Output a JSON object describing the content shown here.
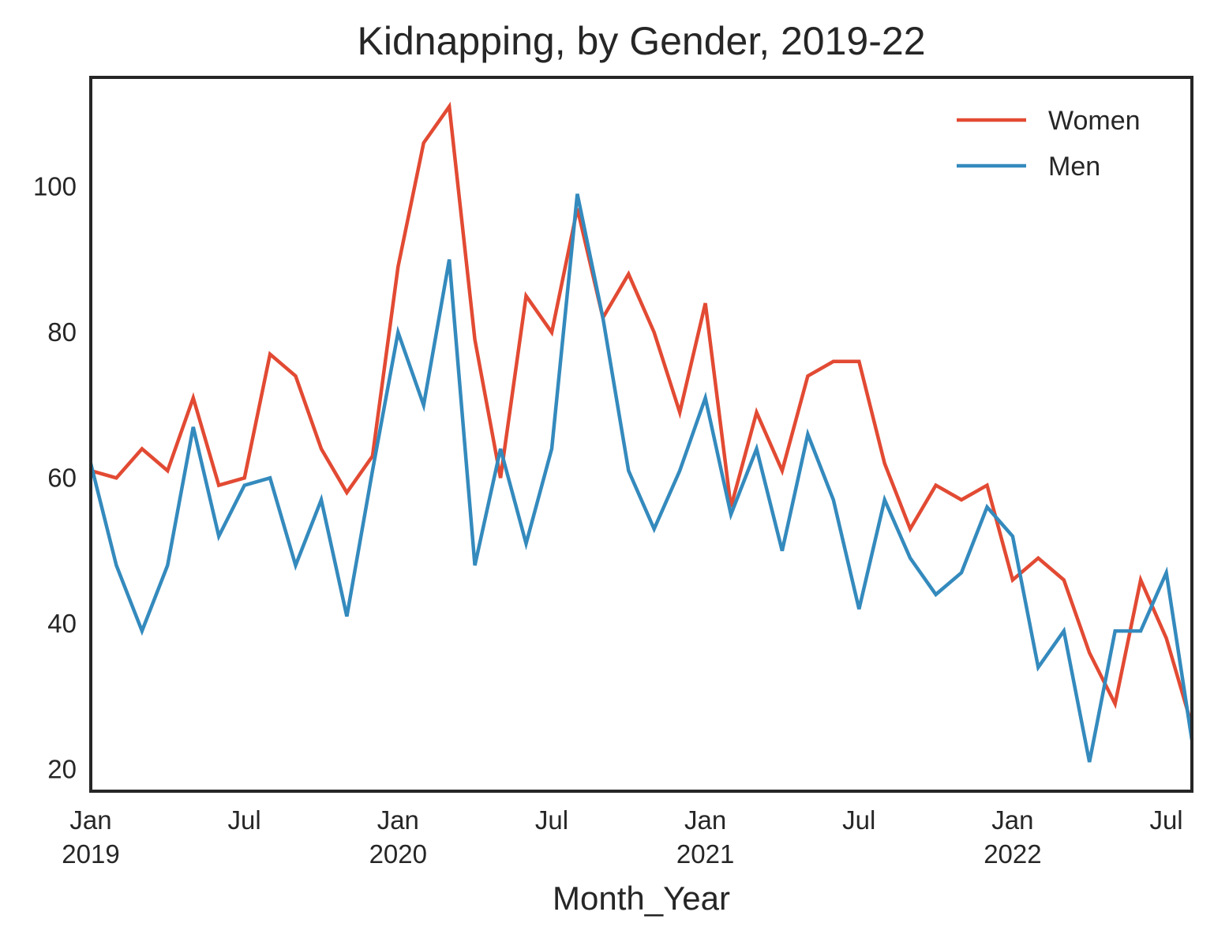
{
  "chart_data": {
    "type": "line",
    "title": "Kidnapping, by Gender, 2019-22",
    "xlabel": "Month_Year",
    "ylabel": "",
    "x": [
      "2019-01",
      "2019-02",
      "2019-03",
      "2019-04",
      "2019-05",
      "2019-06",
      "2019-07",
      "2019-08",
      "2019-09",
      "2019-10",
      "2019-11",
      "2019-12",
      "2020-01",
      "2020-02",
      "2020-03",
      "2020-04",
      "2020-05",
      "2020-06",
      "2020-07",
      "2020-08",
      "2020-09",
      "2020-10",
      "2020-11",
      "2020-12",
      "2021-01",
      "2021-02",
      "2021-03",
      "2021-04",
      "2021-05",
      "2021-06",
      "2021-07",
      "2021-08",
      "2021-09",
      "2021-10",
      "2021-11",
      "2021-12",
      "2022-01",
      "2022-02",
      "2022-03",
      "2022-04",
      "2022-05",
      "2022-06",
      "2022-07",
      "2022-08"
    ],
    "xlim": [
      "2019-01",
      "2022-08"
    ],
    "ylim": [
      17,
      115
    ],
    "yticks": [
      20,
      40,
      60,
      80,
      100
    ],
    "xticks": [
      {
        "x": "2019-01",
        "label": "Jan",
        "year": "2019"
      },
      {
        "x": "2019-07",
        "label": "Jul",
        "year": ""
      },
      {
        "x": "2020-01",
        "label": "Jan",
        "year": "2020"
      },
      {
        "x": "2020-07",
        "label": "Jul",
        "year": ""
      },
      {
        "x": "2021-01",
        "label": "Jan",
        "year": "2021"
      },
      {
        "x": "2021-07",
        "label": "Jul",
        "year": ""
      },
      {
        "x": "2022-01",
        "label": "Jan",
        "year": "2022"
      },
      {
        "x": "2022-07",
        "label": "Jul",
        "year": ""
      }
    ],
    "grid": false,
    "legend_position": "top-right",
    "series": [
      {
        "name": "Women",
        "color": "#e24a33",
        "values": [
          61,
          60,
          64,
          61,
          71,
          59,
          60,
          77,
          74,
          64,
          58,
          63,
          89,
          106,
          111,
          79,
          60,
          85,
          80,
          97,
          82,
          88,
          80,
          69,
          84,
          56,
          69,
          61,
          74,
          76,
          76,
          62,
          53,
          59,
          57,
          59,
          46,
          49,
          46,
          36,
          29,
          46,
          38,
          26
        ]
      },
      {
        "name": "Men",
        "color": "#348abd",
        "values": [
          62,
          48,
          39,
          48,
          67,
          52,
          59,
          60,
          48,
          57,
          41,
          61,
          80,
          70,
          90,
          48,
          64,
          51,
          64,
          99,
          82,
          61,
          53,
          61,
          71,
          55,
          64,
          50,
          66,
          57,
          42,
          57,
          49,
          44,
          47,
          56,
          52,
          34,
          39,
          21,
          39,
          39,
          47,
          24
        ]
      }
    ]
  }
}
